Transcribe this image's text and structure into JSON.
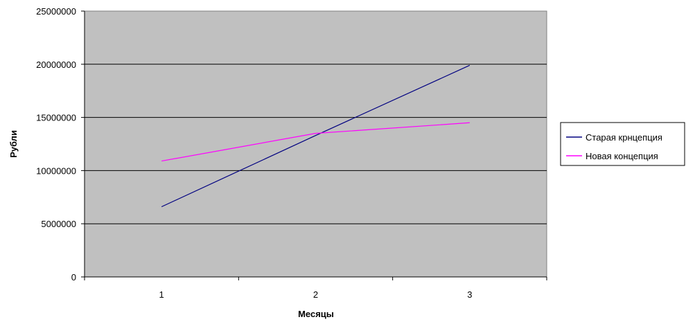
{
  "chart_data": {
    "type": "line",
    "title": "",
    "xlabel": "Месяцы",
    "ylabel": "Рубли",
    "categories": [
      "1",
      "2",
      "3"
    ],
    "series": [
      {
        "name": "Старая крнцепция",
        "values": [
          6600000,
          13300000,
          19900000
        ],
        "color": "#000080"
      },
      {
        "name": "Новая концепция",
        "values": [
          10900000,
          13500000,
          14500000
        ],
        "color": "#ff00ff"
      }
    ],
    "ylim": [
      0,
      25000000
    ],
    "yticks": [
      "0",
      "5000000",
      "10000000",
      "15000000",
      "20000000",
      "25000000"
    ],
    "grid": true,
    "legend_position": "right",
    "plot_background": "#c0c0c0",
    "gridline_color": "#000000"
  }
}
